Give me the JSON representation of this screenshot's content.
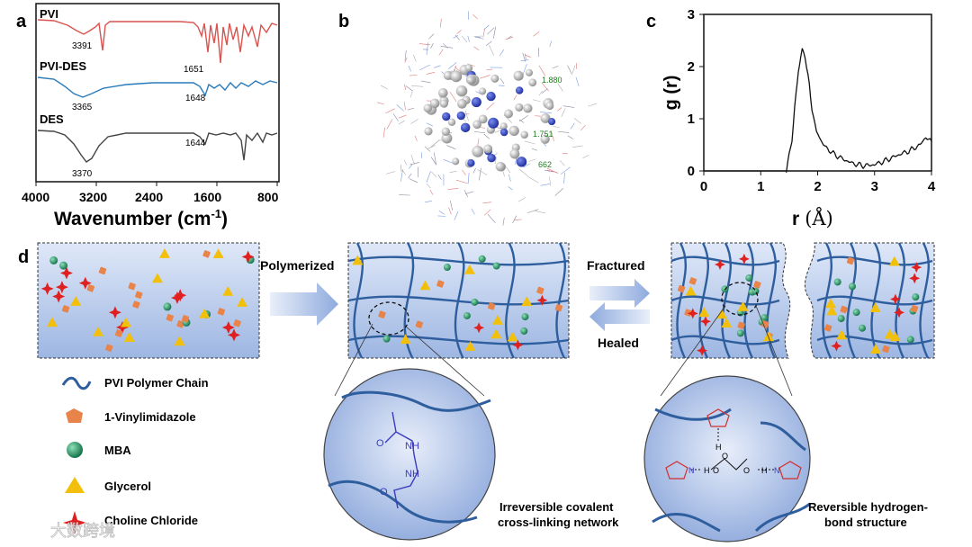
{
  "panel_labels": {
    "a": "a",
    "b": "b",
    "c": "c",
    "d": "d"
  },
  "colors": {
    "pvi": "#d9534f",
    "pvi_des": "#2b7bba",
    "des": "#444444",
    "chain": "#2f5e9e",
    "monomer": "#e8834a",
    "mba": "#1f8f5f",
    "glycerol": "#f2c00a",
    "choline": "#e02020",
    "box_fill": "#c7d6f0"
  },
  "panel_a": {
    "xlabel": "Wavenumber",
    "xlabel_unit": "(cm",
    "xlabel_sup": "-1",
    "xlabel_close": ")",
    "ticks": [
      "4000",
      "3200",
      "2400",
      "1600",
      "800"
    ],
    "series": [
      {
        "name": "PVI",
        "peaks": [
          "3391",
          "1651"
        ]
      },
      {
        "name": "PVI-DES",
        "peaks": [
          "3365",
          "1648"
        ]
      },
      {
        "name": "DES",
        "peaks": [
          "3370",
          "1644"
        ]
      }
    ]
  },
  "panel_b": {
    "bond_labels": [
      "1.880",
      "1.751",
      "662"
    ]
  },
  "chart_data": {
    "type": "line",
    "xlabel": "r",
    "xlabel_unit": "(Å)",
    "ylabel": "g (r)",
    "xlim": [
      0,
      4
    ],
    "ylim": [
      0,
      3
    ],
    "xticks": [
      "0",
      "1",
      "2",
      "3",
      "4"
    ],
    "yticks": [
      "0",
      "1",
      "2",
      "3"
    ],
    "x": [
      0,
      0.5,
      1.0,
      1.45,
      1.55,
      1.62,
      1.68,
      1.73,
      1.78,
      1.83,
      1.9,
      1.98,
      2.1,
      2.25,
      2.4,
      2.6,
      2.8,
      3.0,
      3.2,
      3.4,
      3.6,
      3.8,
      3.9,
      4.0
    ],
    "y": [
      0,
      0,
      0,
      0,
      0.6,
      1.5,
      2.05,
      2.3,
      2.2,
      1.85,
      1.2,
      0.75,
      0.5,
      0.35,
      0.25,
      0.15,
      0.1,
      0.12,
      0.2,
      0.3,
      0.38,
      0.5,
      0.65,
      0.55
    ]
  },
  "panel_d": {
    "arrow_polymerized": "Polymerized",
    "arrow_fractured": "Fractured",
    "arrow_healed": "Healed",
    "caption_covalent_1": "Irreversible covalent",
    "caption_covalent_2": "cross-linking network",
    "caption_hbond_1": "Reversible hydrogen-",
    "caption_hbond_2": "bond structure",
    "legend": [
      {
        "name": "PVI Polymer Chain",
        "icon": "wave-icon"
      },
      {
        "name": "1-Vinylimidazole",
        "icon": "pentagon-icon"
      },
      {
        "name": "MBA",
        "icon": "sphere-icon"
      },
      {
        "name": "Glycerol",
        "icon": "triangle-icon"
      },
      {
        "name": "Choline Chloride",
        "icon": "star-icon"
      }
    ],
    "mol_labels": [
      "O",
      "NH",
      "NH",
      "O"
    ],
    "hbond_labels": [
      "N",
      "H",
      "O",
      "H",
      "O",
      "O",
      "H",
      "N"
    ]
  },
  "watermark": "大数跨境"
}
